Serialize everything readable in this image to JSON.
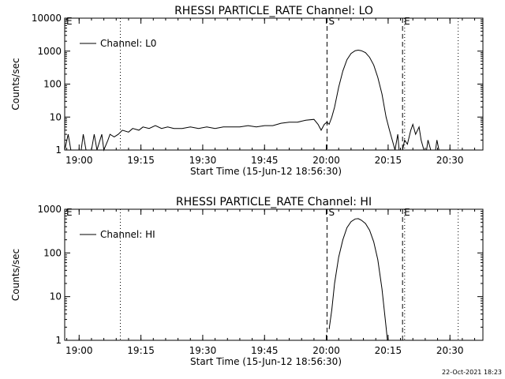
{
  "footer": {
    "timestamp": "22-Oct-2021 18:23"
  },
  "chart_data": [
    {
      "type": "line",
      "title": "RHESSI PARTICLE_RATE Channel: LO",
      "xlabel": "Start Time (15-Jun-12 18:56:30)",
      "ylabel": "Counts/sec",
      "yscale": "log",
      "xlim": [
        "18:56:30",
        "20:38:00"
      ],
      "ylim": [
        1,
        10000
      ],
      "x_ticks": [
        "19:00",
        "19:15",
        "19:30",
        "19:45",
        "20:00",
        "20:15",
        "20:30"
      ],
      "y_ticks": [
        "1",
        "10",
        "100",
        "1000",
        "10000"
      ],
      "legend": {
        "position": "top-left",
        "entries": [
          "Channel: L0"
        ]
      },
      "markers": [
        {
          "time": "18:56:30",
          "label": "E",
          "style": "dashed"
        },
        {
          "time": "19:10:00",
          "label": "",
          "style": "dotted"
        },
        {
          "time": "20:00:10",
          "label": "S",
          "style": "dashed"
        },
        {
          "time": "20:18:30",
          "label": "E",
          "style": "dashed"
        },
        {
          "time": "20:19:00",
          "label": "",
          "style": "dotted"
        },
        {
          "time": "20:32:00",
          "label": "",
          "style": "dotted"
        }
      ],
      "series": [
        {
          "name": "Channel: L0",
          "points": [
            [
              "18:56:30",
              1
            ],
            [
              "18:57:20",
              3
            ],
            [
              "18:58:00",
              1
            ],
            [
              "19:00:30",
              1
            ],
            [
              "19:01:00",
              3
            ],
            [
              "19:01:40",
              1
            ],
            [
              "19:03:00",
              1
            ],
            [
              "19:03:40",
              3
            ],
            [
              "19:04:20",
              1
            ],
            [
              "19:05:30",
              3
            ],
            [
              "19:06:00",
              1
            ],
            [
              "19:07:00",
              2
            ],
            [
              "19:07:30",
              3
            ],
            [
              "19:08:30",
              2.5
            ],
            [
              "19:09:30",
              3
            ],
            [
              "19:10:30",
              4
            ],
            [
              "19:12:00",
              3.5
            ],
            [
              "19:13:00",
              4.5
            ],
            [
              "19:14:30",
              4
            ],
            [
              "19:15:30",
              5
            ],
            [
              "19:17:00",
              4.5
            ],
            [
              "19:18:30",
              5.5
            ],
            [
              "19:20:00",
              4.5
            ],
            [
              "19:21:30",
              5
            ],
            [
              "19:23:00",
              4.5
            ],
            [
              "19:25:00",
              4.5
            ],
            [
              "19:27:00",
              5
            ],
            [
              "19:29:00",
              4.5
            ],
            [
              "19:31:00",
              5
            ],
            [
              "19:33:00",
              4.5
            ],
            [
              "19:35:00",
              5
            ],
            [
              "19:37:00",
              5
            ],
            [
              "19:39:00",
              5
            ],
            [
              "19:41:00",
              5.5
            ],
            [
              "19:43:00",
              5
            ],
            [
              "19:45:00",
              5.5
            ],
            [
              "19:47:00",
              5.5
            ],
            [
              "19:49:00",
              6.5
            ],
            [
              "19:51:00",
              7
            ],
            [
              "19:53:00",
              7
            ],
            [
              "19:55:00",
              8
            ],
            [
              "19:57:00",
              8.5
            ],
            [
              "19:58:00",
              6
            ],
            [
              "19:58:45",
              4
            ],
            [
              "19:59:30",
              6
            ],
            [
              "20:00:10",
              7
            ],
            [
              "20:00:40",
              6
            ],
            [
              "20:01:20",
              10
            ],
            [
              "20:02:00",
              20
            ],
            [
              "20:03:00",
              80
            ],
            [
              "20:04:00",
              250
            ],
            [
              "20:05:00",
              550
            ],
            [
              "20:06:00",
              850
            ],
            [
              "20:07:00",
              1030
            ],
            [
              "20:07:45",
              1070
            ],
            [
              "20:08:30",
              1030
            ],
            [
              "20:09:30",
              900
            ],
            [
              "20:10:30",
              650
            ],
            [
              "20:11:30",
              380
            ],
            [
              "20:12:30",
              160
            ],
            [
              "20:13:30",
              50
            ],
            [
              "20:14:30",
              10
            ],
            [
              "20:15:20",
              4
            ],
            [
              "20:16:00",
              2
            ],
            [
              "20:16:40",
              1
            ],
            [
              "20:17:20",
              3
            ],
            [
              "20:17:40",
              1
            ],
            [
              "20:18:30",
              1
            ],
            [
              "20:19:00",
              2
            ],
            [
              "20:19:40",
              1.5
            ],
            [
              "20:20:30",
              4
            ],
            [
              "20:21:00",
              6
            ],
            [
              "20:21:40",
              3
            ],
            [
              "20:22:30",
              5
            ],
            [
              "20:23:00",
              2
            ],
            [
              "20:23:40",
              1
            ],
            [
              "20:24:20",
              1
            ],
            [
              "20:24:40",
              2
            ],
            [
              "20:25:20",
              1
            ],
            [
              "20:26:30",
              1
            ],
            [
              "20:26:50",
              2
            ],
            [
              "20:27:20",
              1
            ]
          ]
        }
      ]
    },
    {
      "type": "line",
      "title": "RHESSI PARTICLE_RATE Channel: HI",
      "xlabel": "Start Time (15-Jun-12 18:56:30)",
      "ylabel": "Counts/sec",
      "yscale": "log",
      "xlim": [
        "18:56:30",
        "20:38:00"
      ],
      "ylim": [
        1,
        1000
      ],
      "x_ticks": [
        "19:00",
        "19:15",
        "19:30",
        "19:45",
        "20:00",
        "20:15",
        "20:30"
      ],
      "y_ticks": [
        "1",
        "10",
        "100",
        "1000"
      ],
      "legend": {
        "position": "top-left",
        "entries": [
          "Channel: HI"
        ]
      },
      "markers": [
        {
          "time": "18:56:30",
          "label": "E",
          "style": "dashed"
        },
        {
          "time": "19:10:00",
          "label": "",
          "style": "dotted"
        },
        {
          "time": "20:00:10",
          "label": "S",
          "style": "dashed"
        },
        {
          "time": "20:18:30",
          "label": "E",
          "style": "dashed"
        },
        {
          "time": "20:19:00",
          "label": "",
          "style": "dotted"
        },
        {
          "time": "20:32:00",
          "label": "",
          "style": "dotted"
        }
      ],
      "series": [
        {
          "name": "Channel: HI",
          "points": [
            [
              "20:00:40",
              1.8
            ],
            [
              "20:01:20",
              5
            ],
            [
              "20:02:00",
              20
            ],
            [
              "20:03:00",
              80
            ],
            [
              "20:04:00",
              200
            ],
            [
              "20:05:00",
              380
            ],
            [
              "20:06:00",
              520
            ],
            [
              "20:07:00",
              600
            ],
            [
              "20:07:45",
              610
            ],
            [
              "20:08:30",
              560
            ],
            [
              "20:09:30",
              470
            ],
            [
              "20:10:30",
              330
            ],
            [
              "20:11:30",
              180
            ],
            [
              "20:12:30",
              70
            ],
            [
              "20:13:30",
              15
            ],
            [
              "20:14:30",
              2
            ],
            [
              "20:14:50",
              1
            ]
          ]
        }
      ]
    }
  ]
}
